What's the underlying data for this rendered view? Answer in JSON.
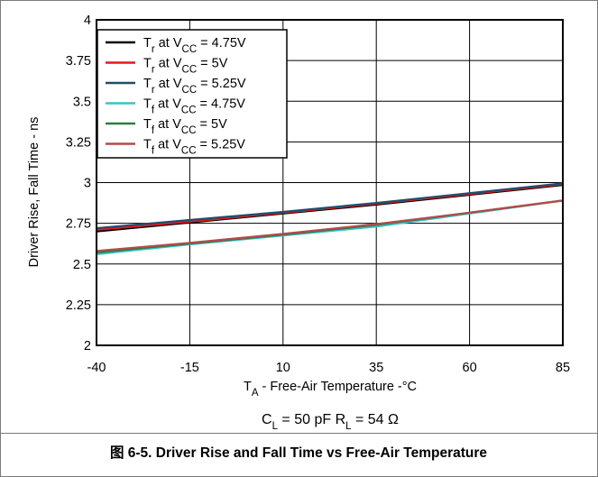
{
  "chart_data": {
    "type": "line",
    "xlabel": "T_A - Free-Air Temperature -°C",
    "ylabel": "Driver Rise, Fall Time - ns",
    "xlim": [
      -40,
      85
    ],
    "ylim": [
      2,
      4
    ],
    "xticks": [
      -40,
      -15,
      10,
      35,
      60,
      85
    ],
    "yticks": [
      2,
      2.25,
      2.5,
      2.75,
      3,
      3.25,
      3.5,
      3.75,
      4
    ],
    "grid": true,
    "legend_position": "top-left",
    "series": [
      {
        "name_parts": [
          "T",
          "r",
          " at V",
          "CC",
          " = 4.75V"
        ],
        "color": "#000000",
        "x": [
          -40,
          -15,
          10,
          35,
          60,
          85
        ],
        "y": [
          2.7,
          2.755,
          2.81,
          2.865,
          2.925,
          2.985
        ]
      },
      {
        "name_parts": [
          "T",
          "r",
          " at V",
          "CC",
          " = 5V"
        ],
        "color": "#e3191c",
        "x": [
          -40,
          -15,
          10,
          35,
          60,
          85
        ],
        "y": [
          2.71,
          2.76,
          2.815,
          2.87,
          2.93,
          2.99
        ]
      },
      {
        "name_parts": [
          "T",
          "r",
          " at V",
          "CC",
          " = 5.25V"
        ],
        "color": "#1e4e6e",
        "x": [
          -40,
          -15,
          10,
          35,
          60,
          85
        ],
        "y": [
          2.72,
          2.77,
          2.82,
          2.875,
          2.935,
          2.995
        ]
      },
      {
        "name_parts": [
          "T",
          "f",
          " at V",
          "CC",
          " = 4.75V"
        ],
        "color": "#35c4cc",
        "x": [
          -40,
          -15,
          10,
          35,
          60,
          85
        ],
        "y": [
          2.56,
          2.62,
          2.675,
          2.73,
          2.81,
          2.89
        ]
      },
      {
        "name_parts": [
          "T",
          "f",
          " at V",
          "CC",
          " = 5V"
        ],
        "color": "#2e7d45",
        "x": [
          -40,
          -15,
          10,
          35,
          60,
          85
        ],
        "y": [
          2.57,
          2.625,
          2.68,
          2.74,
          2.815,
          2.89
        ]
      },
      {
        "name_parts": [
          "T",
          "f",
          " at V",
          "CC",
          " = 5.25V"
        ],
        "color": "#b54a4a",
        "x": [
          -40,
          -15,
          10,
          35,
          60,
          85
        ],
        "y": [
          2.58,
          2.63,
          2.685,
          2.745,
          2.815,
          2.89
        ]
      }
    ],
    "conditions": {
      "cl": {
        "main": "C",
        "sub": "L",
        "rest": " = 50 pF"
      },
      "rl": {
        "main": "R",
        "sub": "L",
        "rest": " = 54 Ω"
      }
    },
    "caption": "图 6-5. Driver Rise and Fall Time vs Free-Air Temperature"
  }
}
